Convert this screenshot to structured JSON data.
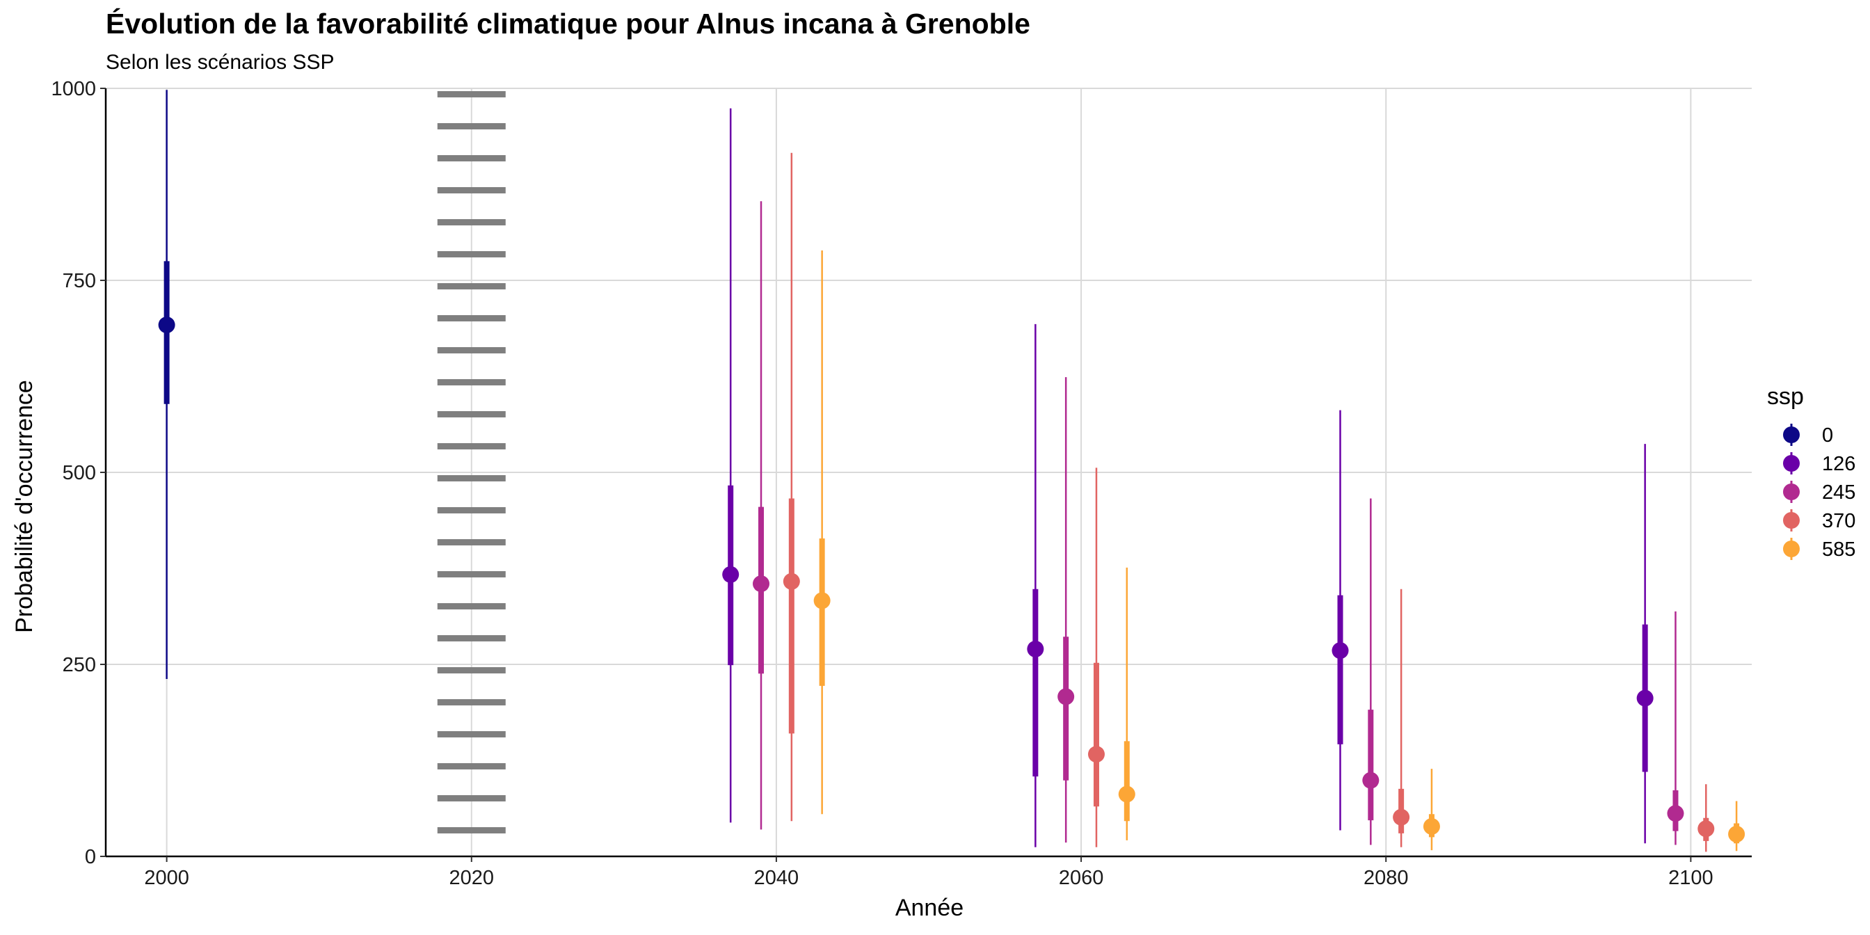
{
  "chart_data": {
    "type": "pointrange",
    "title": "Évolution de la favorabilité climatique pour Alnus incana à Grenoble",
    "subtitle": "Selon les scénarios SSP",
    "xlabel": "Année",
    "ylabel": "Probabilité d'occurrence",
    "xlim": [
      1996,
      2104
    ],
    "ylim": [
      0,
      1000
    ],
    "x_ticks": [
      2000,
      2020,
      2040,
      2060,
      2080,
      2100
    ],
    "y_ticks": [
      0,
      250,
      500,
      750,
      1000
    ],
    "grid": true,
    "reference_line": {
      "x": 2020,
      "style": "dotted",
      "color": "#7f7f7f"
    },
    "legend": {
      "title": "ssp",
      "position": "right"
    },
    "series": [
      {
        "name": "0",
        "color": "#0D0887",
        "points": [
          {
            "x": 2000,
            "y": 692,
            "inner": [
              589,
              775
            ],
            "outer": [
              231,
              998
            ]
          }
        ]
      },
      {
        "name": "126",
        "color": "#6A00A8",
        "points": [
          {
            "x": 2037,
            "y": 367,
            "inner": [
              249,
              483
            ],
            "outer": [
              44,
              974
            ]
          },
          {
            "x": 2057,
            "y": 270,
            "inner": [
              104,
              348
            ],
            "outer": [
              12,
              693
            ]
          },
          {
            "x": 2077,
            "y": 268,
            "inner": [
              146,
              340
            ],
            "outer": [
              34,
              581
            ]
          },
          {
            "x": 2097,
            "y": 206,
            "inner": [
              110,
              302
            ],
            "outer": [
              17,
              537
            ]
          }
        ]
      },
      {
        "name": "245",
        "color": "#B12A90",
        "points": [
          {
            "x": 2039,
            "y": 355,
            "inner": [
              238,
              455
            ],
            "outer": [
              35,
              853
            ]
          },
          {
            "x": 2059,
            "y": 208,
            "inner": [
              99,
              286
            ],
            "outer": [
              18,
              624
            ]
          },
          {
            "x": 2079,
            "y": 99,
            "inner": [
              47,
              191
            ],
            "outer": [
              15,
              466
            ]
          },
          {
            "x": 2099,
            "y": 56,
            "inner": [
              33,
              86
            ],
            "outer": [
              15,
              319
            ]
          }
        ]
      },
      {
        "name": "370",
        "color": "#E16462",
        "points": [
          {
            "x": 2041,
            "y": 358,
            "inner": [
              160,
              466
            ],
            "outer": [
              46,
              916
            ]
          },
          {
            "x": 2061,
            "y": 133,
            "inner": [
              65,
              252
            ],
            "outer": [
              12,
              506
            ]
          },
          {
            "x": 2081,
            "y": 51,
            "inner": [
              30,
              88
            ],
            "outer": [
              12,
              348
            ]
          },
          {
            "x": 2101,
            "y": 36,
            "inner": [
              20,
              50
            ],
            "outer": [
              6,
              94
            ]
          }
        ]
      },
      {
        "name": "585",
        "color": "#FCA636",
        "points": [
          {
            "x": 2043,
            "y": 333,
            "inner": [
              222,
              414
            ],
            "outer": [
              55,
              789
            ]
          },
          {
            "x": 2063,
            "y": 81,
            "inner": [
              46,
              150
            ],
            "outer": [
              21,
              376
            ]
          },
          {
            "x": 2083,
            "y": 39,
            "inner": [
              25,
              55
            ],
            "outer": [
              8,
              114
            ]
          },
          {
            "x": 2103,
            "y": 29,
            "inner": [
              17,
              43
            ],
            "outer": [
              7,
              72
            ]
          }
        ]
      }
    ]
  }
}
